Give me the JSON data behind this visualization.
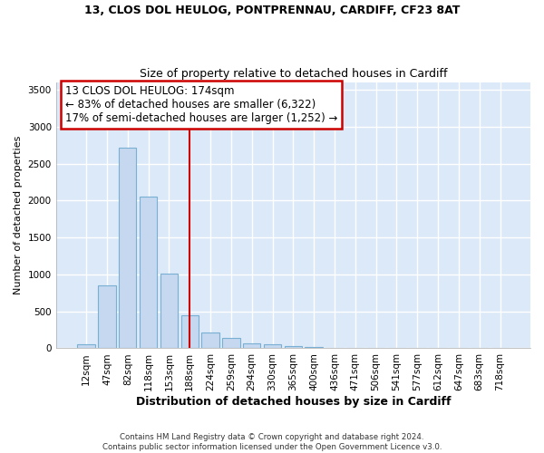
{
  "title1": "13, CLOS DOL HEULOG, PONTPRENNAU, CARDIFF, CF23 8AT",
  "title2": "Size of property relative to detached houses in Cardiff",
  "xlabel": "Distribution of detached houses by size in Cardiff",
  "ylabel": "Number of detached properties",
  "categories": [
    "12sqm",
    "47sqm",
    "82sqm",
    "118sqm",
    "153sqm",
    "188sqm",
    "224sqm",
    "259sqm",
    "294sqm",
    "330sqm",
    "365sqm",
    "400sqm",
    "436sqm",
    "471sqm",
    "506sqm",
    "541sqm",
    "577sqm",
    "612sqm",
    "647sqm",
    "683sqm",
    "718sqm"
  ],
  "values": [
    60,
    850,
    2720,
    2060,
    1010,
    450,
    220,
    145,
    65,
    55,
    35,
    20,
    10,
    5,
    2,
    2,
    0,
    0,
    0,
    0,
    0
  ],
  "bar_color": "#c5d8f0",
  "bar_edge_color": "#7aafd4",
  "vline_x": 5,
  "vline_color": "#cc0000",
  "annotation_line1": "13 CLOS DOL HEULOG: 174sqm",
  "annotation_line2": "← 83% of detached houses are smaller (6,322)",
  "annotation_line3": "17% of semi-detached houses are larger (1,252) →",
  "annotation_box_color": "#cc0000",
  "ylim": [
    0,
    3600
  ],
  "plot_bg_color": "#dce9f8",
  "fig_bg_color": "#ffffff",
  "grid_color": "#ffffff",
  "footer1": "Contains HM Land Registry data © Crown copyright and database right 2024.",
  "footer2": "Contains public sector information licensed under the Open Government Licence v3.0."
}
